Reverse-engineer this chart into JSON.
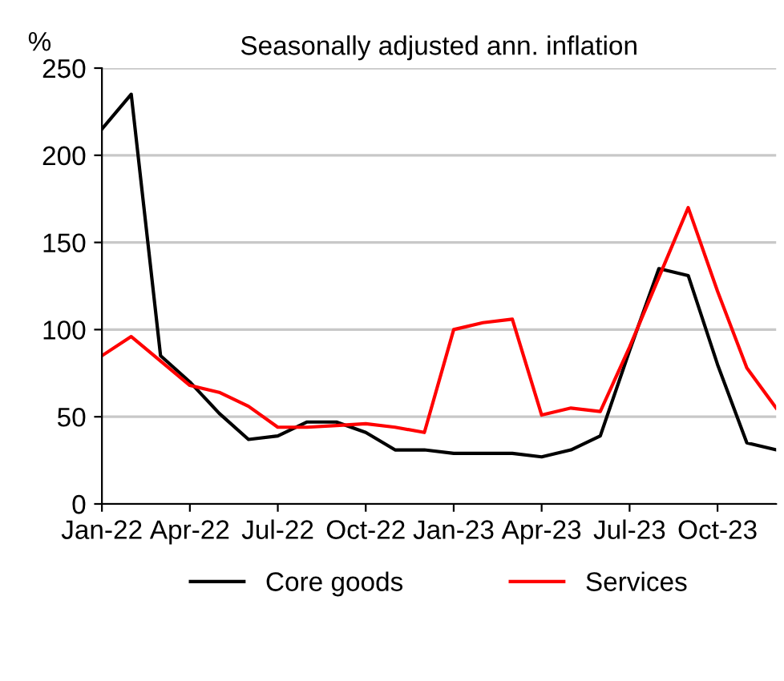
{
  "chart_data": {
    "type": "line",
    "title": "Seasonally adjusted ann. inflation",
    "ylabel": "%",
    "categories": [
      "Jan-22",
      null,
      null,
      "Apr-22",
      null,
      null,
      "Jul-22",
      null,
      null,
      "Oct-22",
      null,
      null,
      "Jan-23",
      null,
      null,
      "Apr-23",
      null,
      null,
      "Jul-23",
      null,
      null,
      "Oct-23",
      null,
      null
    ],
    "series": [
      {
        "name": "Core goods",
        "color": "#000000",
        "values": [
          215,
          235,
          85,
          70,
          52,
          37,
          39,
          47,
          47,
          41,
          31,
          31,
          29,
          29,
          29,
          27,
          31,
          39,
          88,
          135,
          131,
          80,
          35,
          31
        ]
      },
      {
        "name": "Services",
        "color": "#ff0000",
        "values": [
          85,
          96,
          82,
          68,
          64,
          56,
          44,
          44,
          45,
          46,
          44,
          41,
          100,
          104,
          106,
          51,
          55,
          53,
          90,
          130,
          170,
          122,
          78,
          55
        ]
      }
    ],
    "ylim": [
      0,
      250
    ],
    "yticks": [
      0,
      50,
      100,
      150,
      200,
      250
    ],
    "grid": "y",
    "legend": "bottom",
    "marker": "none",
    "line_style": "solid"
  }
}
